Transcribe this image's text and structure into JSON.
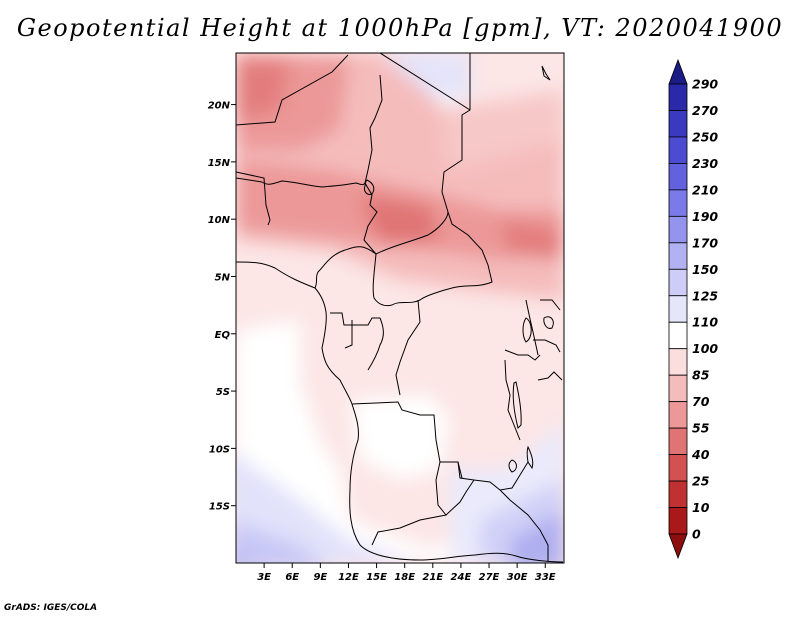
{
  "title": "Geopotential Height at 1000hPa [gpm], VT: 2020041900",
  "footer": "GrADS: IGES/COLA",
  "map": {
    "variable": "Geopotential Height",
    "level": "1000hPa",
    "units": "gpm",
    "valid_time": "2020041900",
    "lon_range": [
      0,
      35
    ],
    "lat_range": [
      -20,
      24.5
    ],
    "x_tick_values": [
      3,
      6,
      9,
      12,
      15,
      18,
      21,
      24,
      27,
      30,
      33
    ],
    "x_tick_labels": [
      "3E",
      "6E",
      "9E",
      "12E",
      "15E",
      "18E",
      "21E",
      "24E",
      "27E",
      "30E",
      "33E"
    ],
    "y_tick_values": [
      20,
      15,
      10,
      5,
      0,
      -5,
      -10,
      -15
    ],
    "y_tick_labels": [
      "20N",
      "15N",
      "10N",
      "5N",
      "EQ",
      "5S",
      "10S",
      "15S"
    ]
  },
  "colorbar": {
    "labels": [
      "290",
      "270",
      "250",
      "230",
      "210",
      "190",
      "170",
      "150",
      "125",
      "110",
      "100",
      "85",
      "70",
      "55",
      "40",
      "25",
      "10",
      "0"
    ],
    "colors": [
      "#1c1c86",
      "#2a2aa8",
      "#3a3ac0",
      "#4c4cd2",
      "#6262de",
      "#7a7ae8",
      "#9494ee",
      "#b1b1f3",
      "#cdcdf7",
      "#e6e6fb",
      "#ffffff",
      "#fbdede",
      "#f5bcbc",
      "#ec9898",
      "#e07474",
      "#d25252",
      "#c03232",
      "#a91919",
      "#8c0e0e"
    ]
  }
}
